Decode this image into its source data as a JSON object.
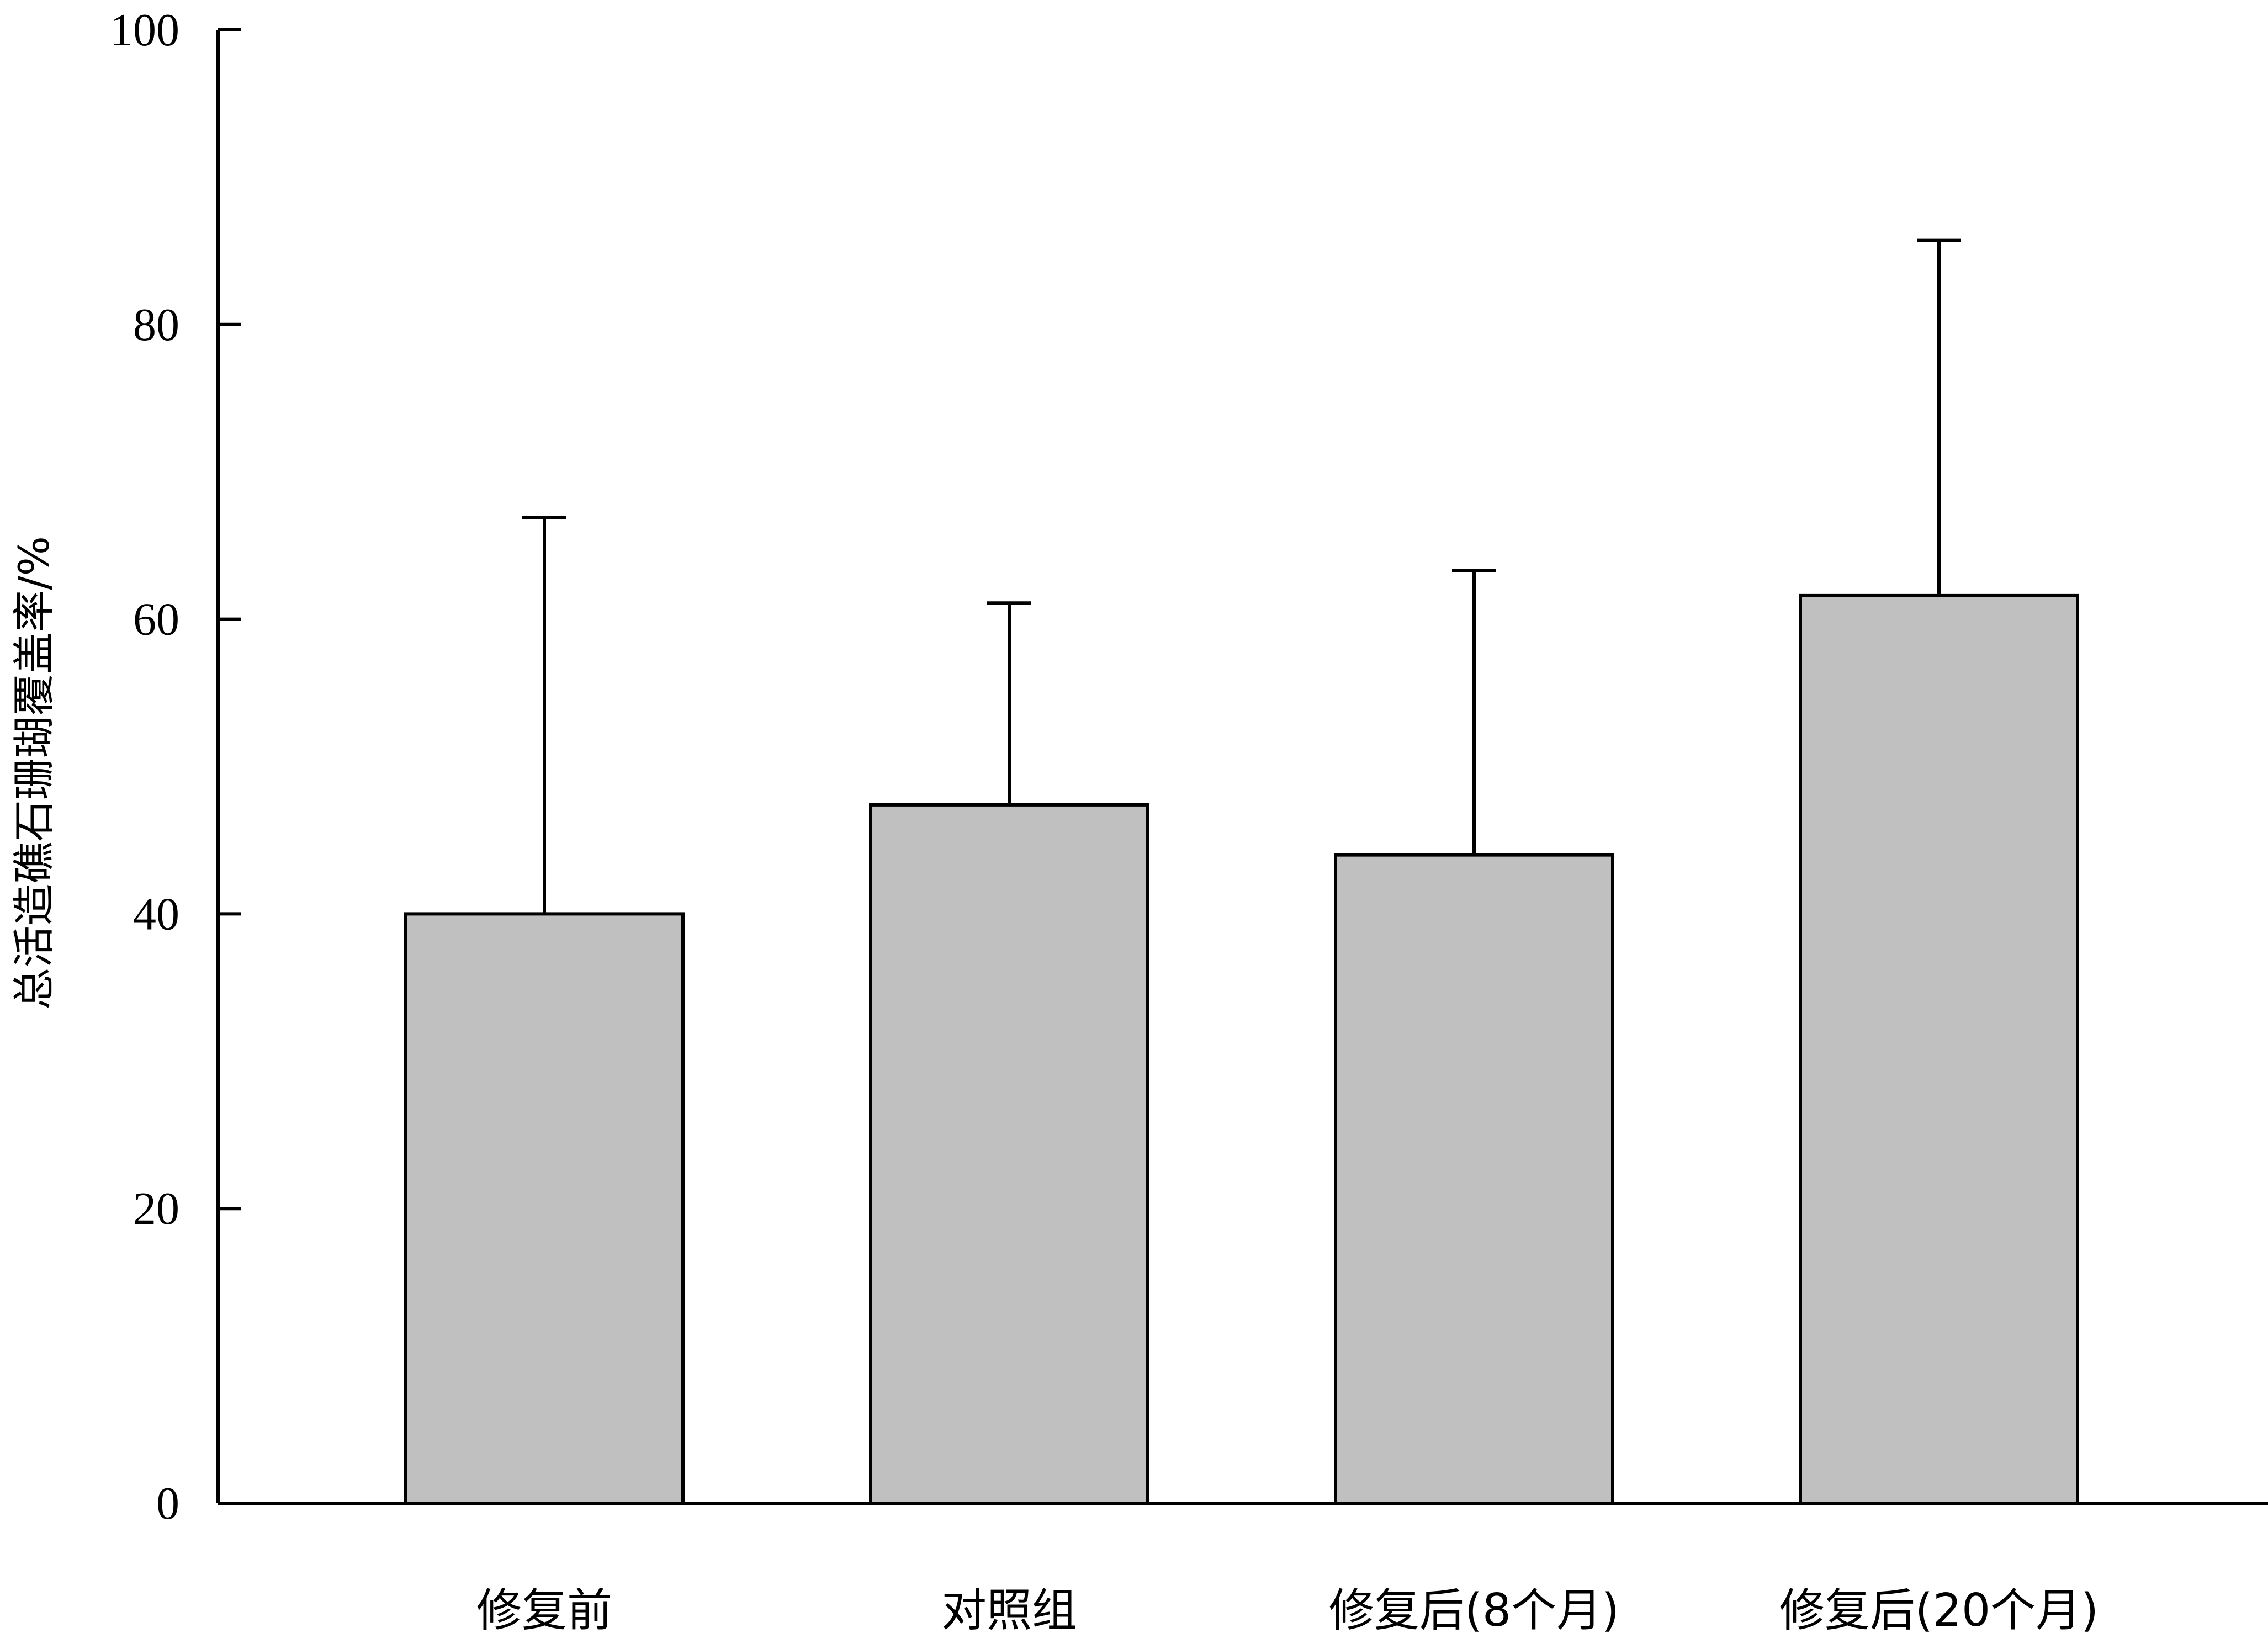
{
  "chart_data": {
    "type": "bar",
    "title": "",
    "xlabel": "",
    "ylabel": "总活造礁石珊瑚覆盖率/%",
    "ylim": [
      0,
      100
    ],
    "yticks": [
      0,
      20,
      40,
      60,
      80,
      100
    ],
    "categories": [
      "修复前",
      "对照组",
      "修复后(8个月)",
      "修复后(20个月)"
    ],
    "values": [
      40,
      47.4,
      44,
      61.6
    ],
    "error_upper": [
      66.9,
      61.1,
      63.3,
      85.7
    ],
    "grid": false,
    "legend": "none",
    "colors": {
      "bar_fill": "#c0c0c0",
      "bar_stroke": "#000000",
      "axis": "#000000"
    }
  }
}
